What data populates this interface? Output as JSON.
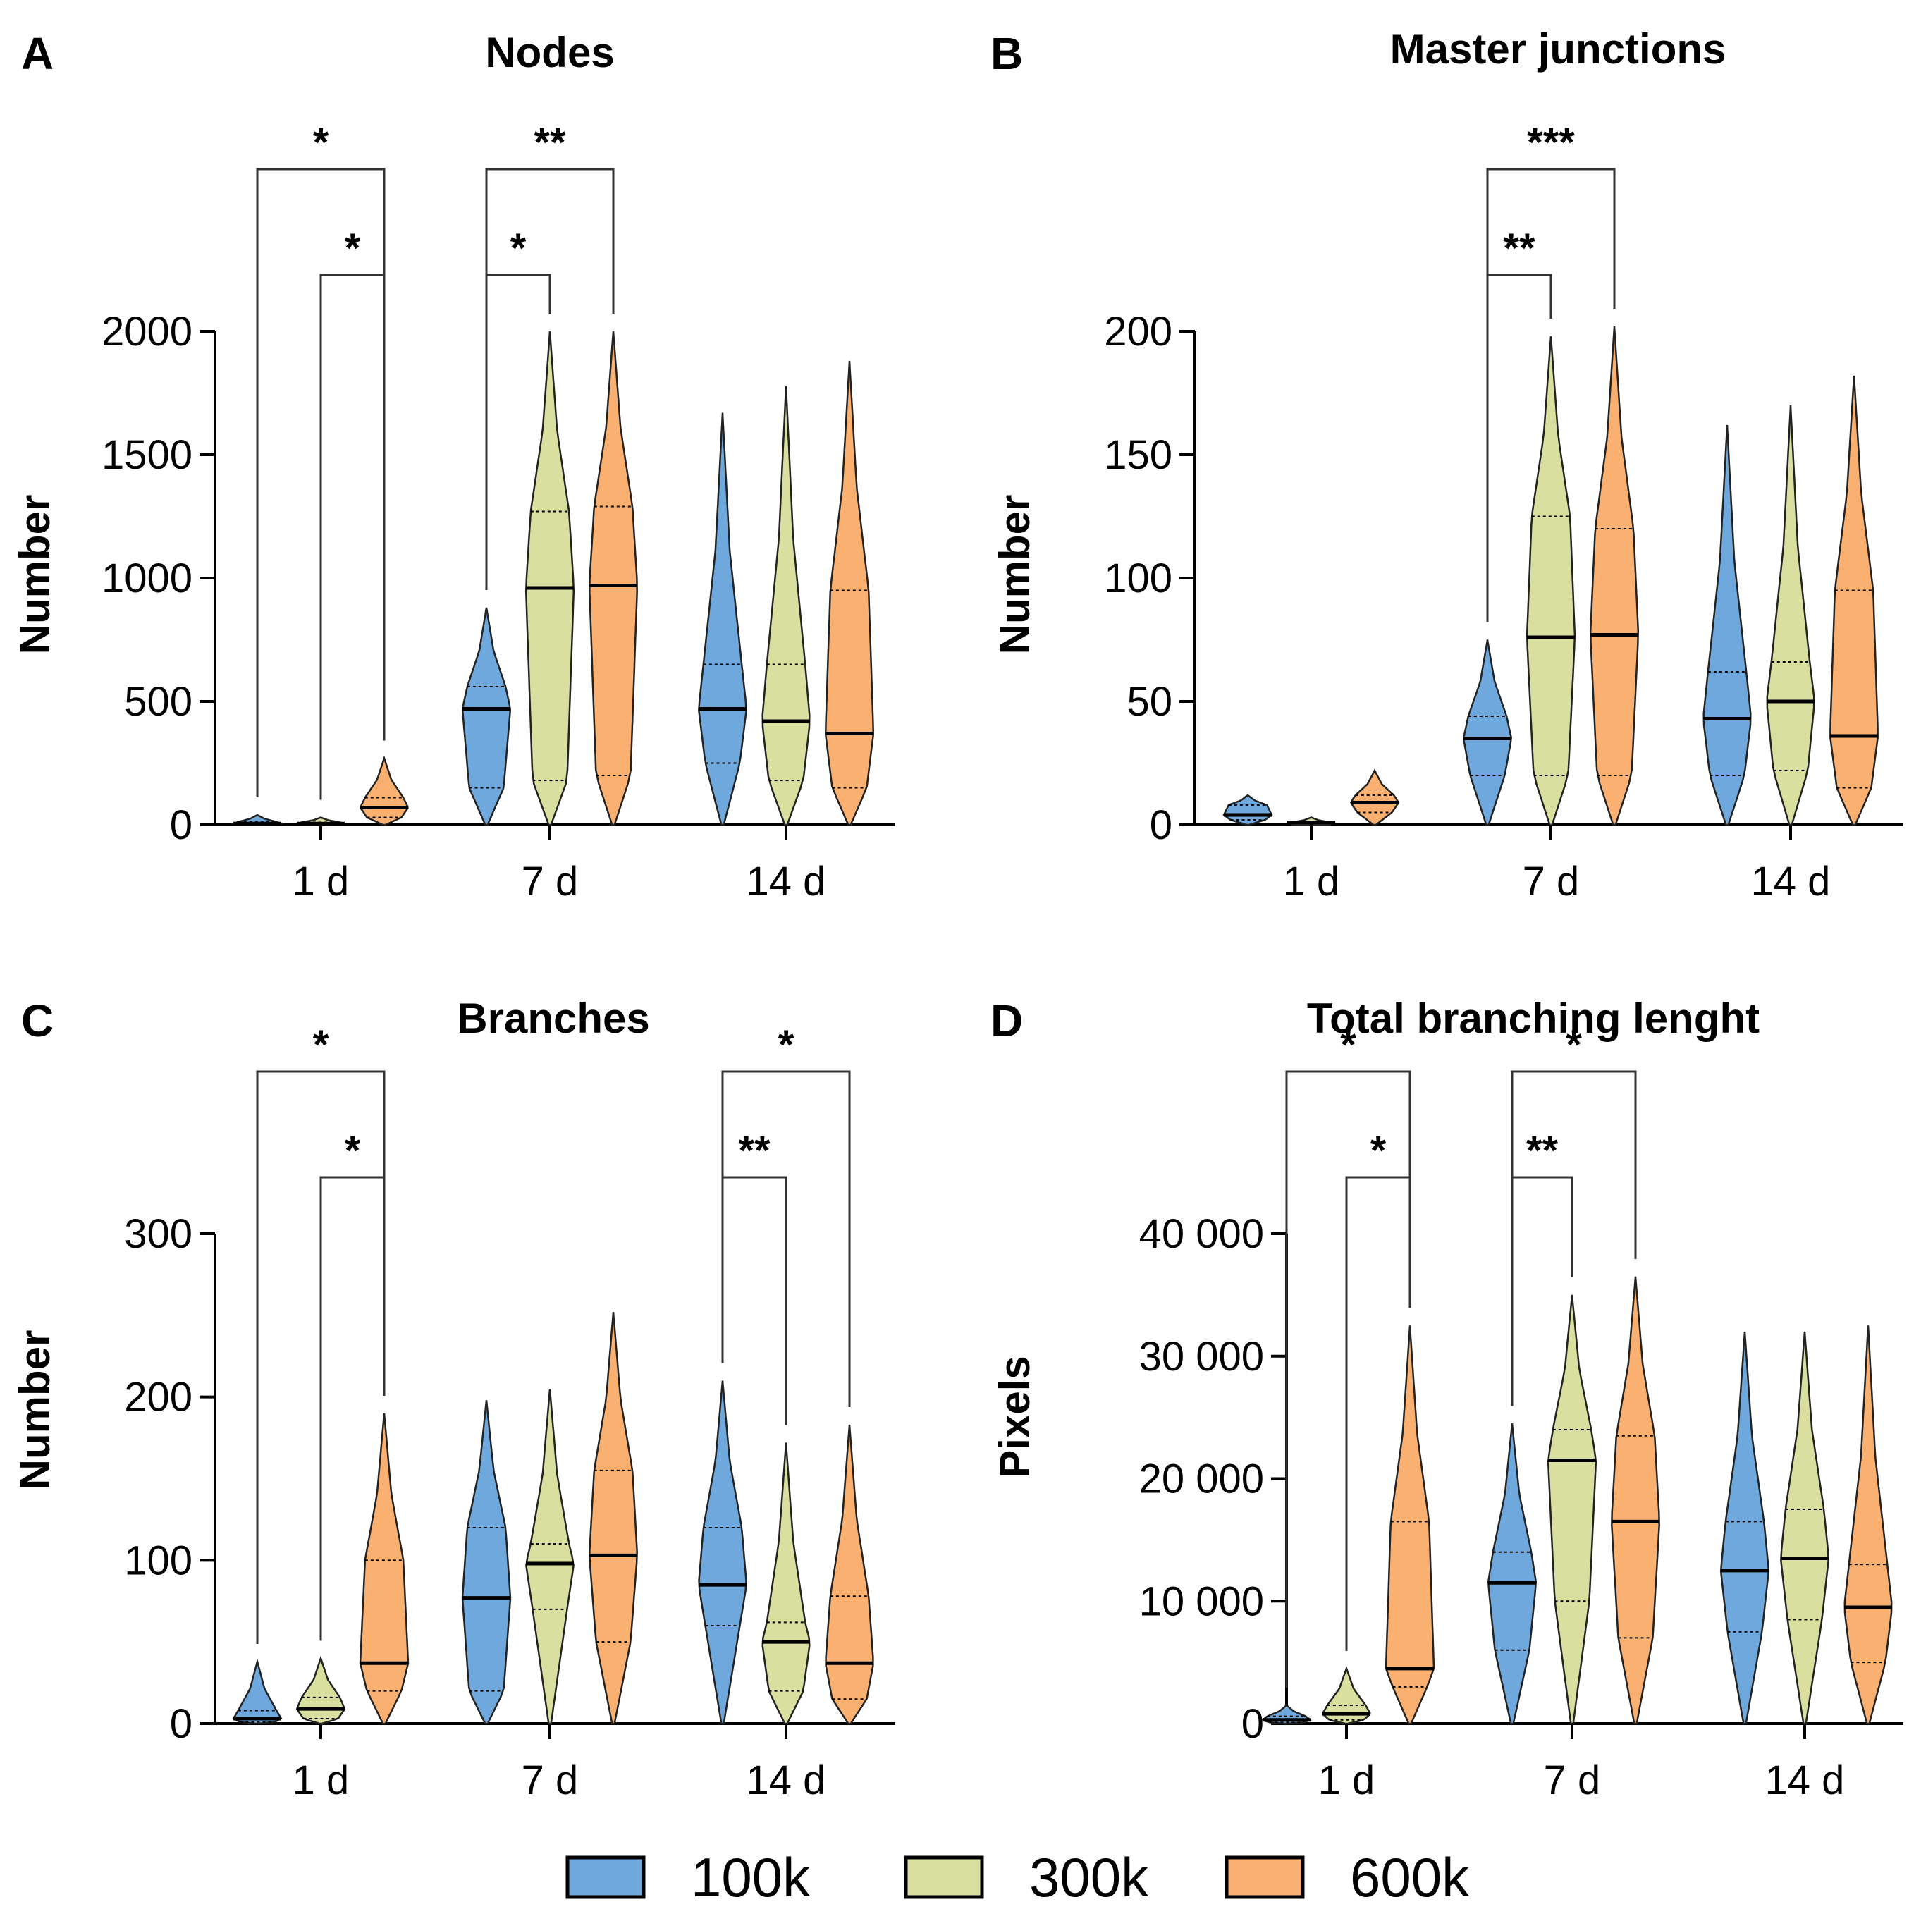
{
  "legend": [
    {
      "label": "100k",
      "color": "#6fa8dc"
    },
    {
      "label": "300k",
      "color": "#d9df9f"
    },
    {
      "label": "600k",
      "color": "#f9b071"
    }
  ],
  "colors": {
    "100k": "#6fa8dc",
    "300k": "#d9df9f",
    "600k": "#f9b071",
    "axis": "#000000"
  },
  "chart_data": [
    {
      "letter": "A",
      "type": "violin",
      "title": "Nodes",
      "ylabel": "Number",
      "categories": [
        "1 d",
        "7 d",
        "14 d"
      ],
      "ylim": [
        0,
        2000
      ],
      "yticks": [
        0,
        500,
        1000,
        1500,
        2000
      ],
      "ytick_labels": [
        "0",
        "500",
        "1000",
        "1500",
        "2000"
      ],
      "series": [
        {
          "name": "100k",
          "stats": [
            {
              "min": 0,
              "q1": 2,
              "median": 5,
              "q3": 12,
              "max": 40
            },
            {
              "min": 0,
              "q1": 150,
              "median": 470,
              "q3": 560,
              "max": 880
            },
            {
              "min": 0,
              "q1": 250,
              "median": 470,
              "q3": 650,
              "max": 1670
            }
          ]
        },
        {
          "name": "300k",
          "stats": [
            {
              "min": 0,
              "q1": 2,
              "median": 5,
              "q3": 10,
              "max": 30
            },
            {
              "min": 0,
              "q1": 180,
              "median": 960,
              "q3": 1270,
              "max": 2000
            },
            {
              "min": 0,
              "q1": 180,
              "median": 420,
              "q3": 650,
              "max": 1780
            }
          ]
        },
        {
          "name": "600k",
          "stats": [
            {
              "min": 0,
              "q1": 30,
              "median": 70,
              "q3": 110,
              "max": 270
            },
            {
              "min": 0,
              "q1": 200,
              "median": 970,
              "q3": 1290,
              "max": 2000
            },
            {
              "min": 0,
              "q1": 150,
              "median": 370,
              "q3": 950,
              "max": 1880
            }
          ]
        }
      ],
      "comparisons": [
        {
          "from": [
            0,
            "100k"
          ],
          "to": [
            0,
            "600k"
          ],
          "label": "*",
          "level": 2
        },
        {
          "from": [
            0,
            "300k"
          ],
          "to": [
            0,
            "600k"
          ],
          "label": "*",
          "level": 1
        },
        {
          "from": [
            1,
            "100k"
          ],
          "to": [
            1,
            "600k"
          ],
          "label": "**",
          "level": 2
        },
        {
          "from": [
            1,
            "100k"
          ],
          "to": [
            1,
            "300k"
          ],
          "label": "*",
          "level": 1
        }
      ]
    },
    {
      "letter": "B",
      "type": "violin",
      "title": "Master junctions",
      "ylabel": "Number",
      "categories": [
        "1 d",
        "7 d",
        "14 d"
      ],
      "ylim": [
        0,
        200
      ],
      "yticks": [
        0,
        50,
        100,
        150,
        200
      ],
      "ytick_labels": [
        "0",
        "50",
        "100",
        "150",
        "200"
      ],
      "series": [
        {
          "name": "100k",
          "stats": [
            {
              "min": 0,
              "q1": 2,
              "median": 4,
              "q3": 8,
              "max": 12
            },
            {
              "min": 0,
              "q1": 20,
              "median": 35,
              "q3": 44,
              "max": 75
            },
            {
              "min": 0,
              "q1": 20,
              "median": 43,
              "q3": 62,
              "max": 162
            }
          ]
        },
        {
          "name": "300k",
          "stats": [
            {
              "min": 0,
              "q1": 0,
              "median": 1,
              "q3": 1,
              "max": 3
            },
            {
              "min": 0,
              "q1": 20,
              "median": 76,
              "q3": 125,
              "max": 198
            },
            {
              "min": 0,
              "q1": 22,
              "median": 50,
              "q3": 66,
              "max": 170
            }
          ]
        },
        {
          "name": "600k",
          "stats": [
            {
              "min": 0,
              "q1": 5,
              "median": 9,
              "q3": 12,
              "max": 22
            },
            {
              "min": 0,
              "q1": 20,
              "median": 77,
              "q3": 120,
              "max": 202
            },
            {
              "min": 0,
              "q1": 15,
              "median": 36,
              "q3": 95,
              "max": 182
            }
          ]
        }
      ],
      "comparisons": [
        {
          "from": [
            1,
            "100k"
          ],
          "to": [
            1,
            "600k"
          ],
          "label": "***",
          "level": 2
        },
        {
          "from": [
            1,
            "100k"
          ],
          "to": [
            1,
            "300k"
          ],
          "label": "**",
          "level": 1
        }
      ]
    },
    {
      "letter": "C",
      "type": "violin",
      "title": "Branches",
      "ylabel": "Number",
      "categories": [
        "1 d",
        "7 d",
        "14 d"
      ],
      "ylim": [
        0,
        300
      ],
      "yticks": [
        0,
        100,
        200,
        300
      ],
      "ytick_labels": [
        "0",
        "100",
        "200",
        "300"
      ],
      "series": [
        {
          "name": "100k",
          "stats": [
            {
              "min": 0,
              "q1": 1,
              "median": 3,
              "q3": 8,
              "max": 38
            },
            {
              "min": 0,
              "q1": 20,
              "median": 77,
              "q3": 120,
              "max": 198
            },
            {
              "min": 0,
              "q1": 60,
              "median": 85,
              "q3": 120,
              "max": 210
            }
          ]
        },
        {
          "name": "300k",
          "stats": [
            {
              "min": 0,
              "q1": 3,
              "median": 9,
              "q3": 16,
              "max": 40
            },
            {
              "min": 0,
              "q1": 70,
              "median": 98,
              "q3": 110,
              "max": 205
            },
            {
              "min": 0,
              "q1": 20,
              "median": 50,
              "q3": 62,
              "max": 172
            }
          ]
        },
        {
          "name": "600k",
          "stats": [
            {
              "min": 0,
              "q1": 20,
              "median": 37,
              "q3": 100,
              "max": 190
            },
            {
              "min": 0,
              "q1": 50,
              "median": 103,
              "q3": 155,
              "max": 252
            },
            {
              "min": 0,
              "q1": 15,
              "median": 37,
              "q3": 78,
              "max": 183
            }
          ]
        }
      ],
      "comparisons": [
        {
          "from": [
            0,
            "100k"
          ],
          "to": [
            0,
            "600k"
          ],
          "label": "*",
          "level": 2
        },
        {
          "from": [
            0,
            "300k"
          ],
          "to": [
            0,
            "600k"
          ],
          "label": "*",
          "level": 1
        },
        {
          "from": [
            2,
            "100k"
          ],
          "to": [
            2,
            "600k"
          ],
          "label": "*",
          "level": 2
        },
        {
          "from": [
            2,
            "100k"
          ],
          "to": [
            2,
            "300k"
          ],
          "label": "**",
          "level": 1
        }
      ]
    },
    {
      "letter": "D",
      "type": "violin",
      "title": "Total branching lenght",
      "ylabel": "Pixels",
      "categories": [
        "1 d",
        "7 d",
        "14 d"
      ],
      "ylim": [
        0,
        40000
      ],
      "yticks": [
        0,
        10000,
        20000,
        30000,
        40000
      ],
      "ytick_labels": [
        "0",
        "10 000",
        "20 000",
        "30 000",
        "40 000"
      ],
      "series": [
        {
          "name": "100k",
          "stats": [
            {
              "min": 0,
              "q1": 100,
              "median": 300,
              "q3": 600,
              "max": 1500
            },
            {
              "min": 0,
              "q1": 6000,
              "median": 11500,
              "q3": 14000,
              "max": 24500
            },
            {
              "min": 0,
              "q1": 7500,
              "median": 12500,
              "q3": 16500,
              "max": 32000
            }
          ]
        },
        {
          "name": "300k",
          "stats": [
            {
              "min": 0,
              "q1": 300,
              "median": 800,
              "q3": 1500,
              "max": 4500
            },
            {
              "min": 0,
              "q1": 10000,
              "median": 21500,
              "q3": 24000,
              "max": 35000
            },
            {
              "min": 0,
              "q1": 8500,
              "median": 13500,
              "q3": 17500,
              "max": 32000
            }
          ]
        },
        {
          "name": "600k",
          "stats": [
            {
              "min": 0,
              "q1": 3000,
              "median": 4500,
              "q3": 16500,
              "max": 32500
            },
            {
              "min": 0,
              "q1": 7000,
              "median": 16500,
              "q3": 23500,
              "max": 36500
            },
            {
              "min": 0,
              "q1": 5000,
              "median": 9500,
              "q3": 13000,
              "max": 32500
            }
          ]
        }
      ],
      "comparisons": [
        {
          "from": [
            0,
            "100k"
          ],
          "to": [
            0,
            "600k"
          ],
          "label": "*",
          "level": 2
        },
        {
          "from": [
            0,
            "300k"
          ],
          "to": [
            0,
            "600k"
          ],
          "label": "*",
          "level": 1
        },
        {
          "from": [
            1,
            "100k"
          ],
          "to": [
            1,
            "600k"
          ],
          "label": "*",
          "level": 2
        },
        {
          "from": [
            1,
            "100k"
          ],
          "to": [
            1,
            "300k"
          ],
          "label": "**",
          "level": 1
        }
      ]
    }
  ]
}
